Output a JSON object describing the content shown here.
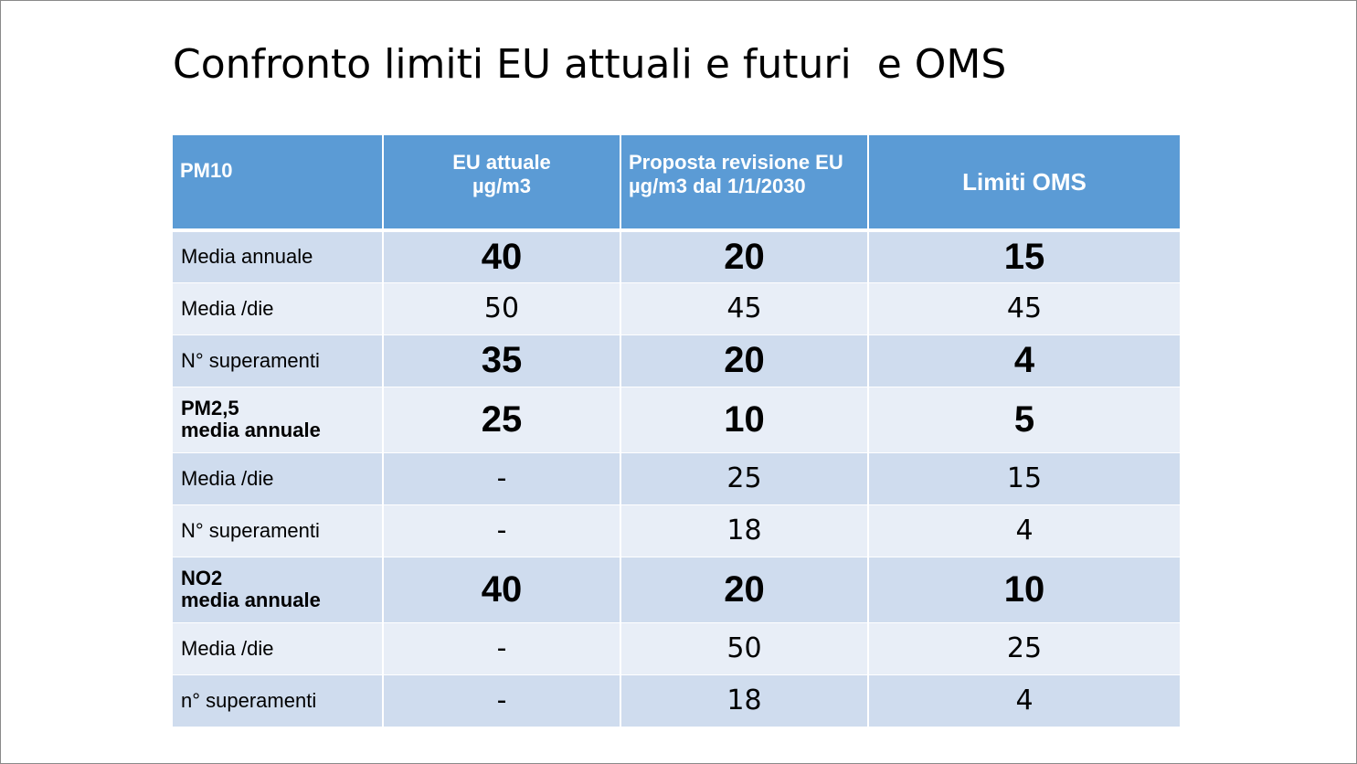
{
  "slide": {
    "title": "Confronto limiti EU attuali e futuri  e OMS"
  },
  "table": {
    "headers": {
      "col0": "PM10",
      "col1_line1": "EU attuale",
      "col1_line2": "µg/m3",
      "col2_line1": "Proposta revisione EU",
      "col2_line2": "µg/m3 dal 1/1/2030",
      "col3": "Limiti   OMS"
    },
    "rows": [
      {
        "label": "Media annuale",
        "eu_current": "40",
        "eu_proposal": "20",
        "who": "15"
      },
      {
        "label": "Media /die",
        "eu_current": "50",
        "eu_proposal": "45",
        "who": "45"
      },
      {
        "label": "N° superamenti",
        "eu_current": "35",
        "eu_proposal": "20",
        "who": "4"
      },
      {
        "label_line1": "PM2,5",
        "label_line2": "media annuale",
        "eu_current": "25",
        "eu_proposal": "10",
        "who": "5"
      },
      {
        "label": "Media /die",
        "eu_current": "-",
        "eu_proposal": "25",
        "who": "15"
      },
      {
        "label": "N° superamenti",
        "eu_current": "-",
        "eu_proposal": "18",
        "who": "4"
      },
      {
        "label_line1": "NO2",
        "label_line2": "media annuale",
        "eu_current": "40",
        "eu_proposal": "20",
        "who": "10"
      },
      {
        "label": "Media /die",
        "eu_current": "-",
        "eu_proposal": "50",
        "who": "25"
      },
      {
        "label": "n° superamenti",
        "eu_current": "-",
        "eu_proposal": "18",
        "who": "4"
      }
    ]
  },
  "colors": {
    "header_bg": "#5b9bd5",
    "row_dark": "#cfdcee",
    "row_light": "#e8eef7"
  }
}
